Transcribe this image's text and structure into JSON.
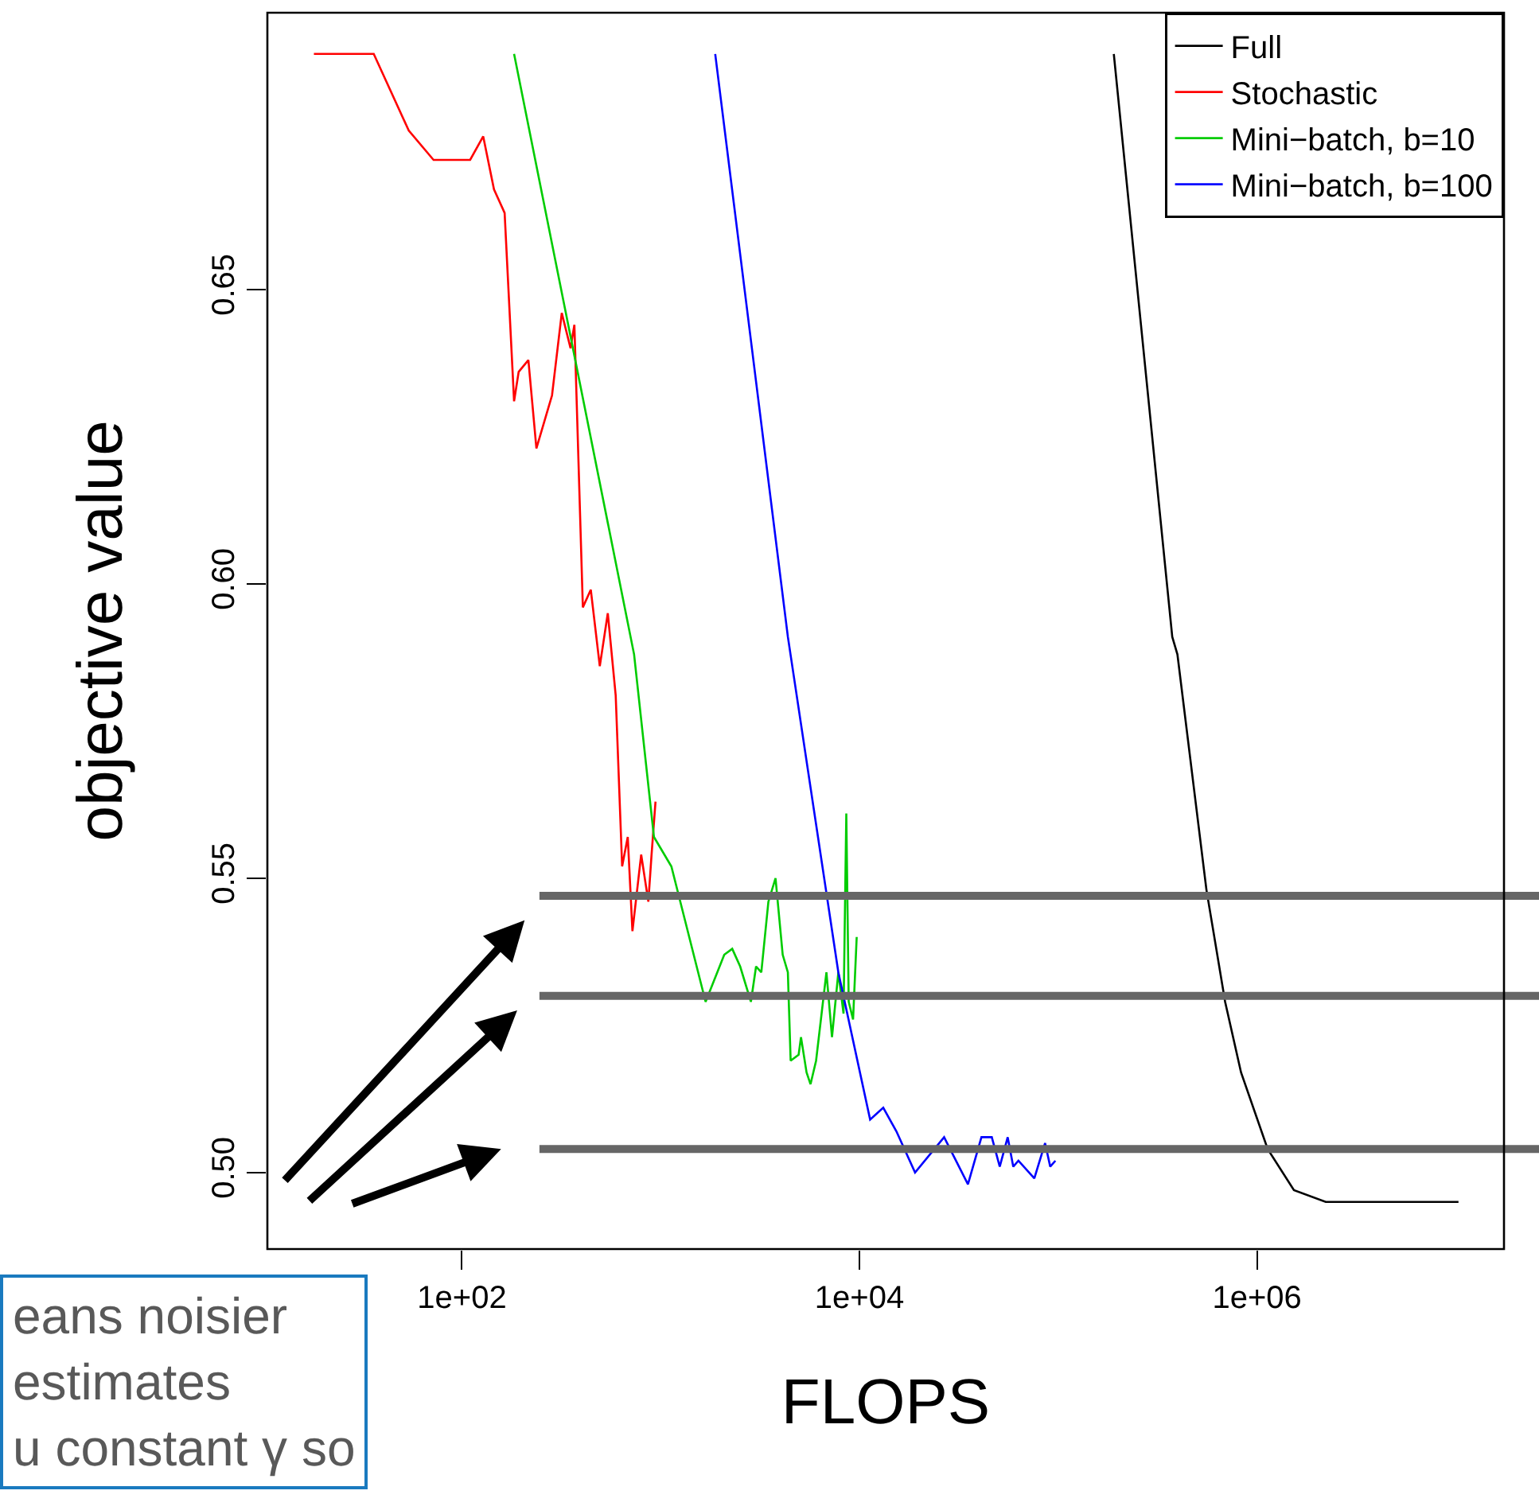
{
  "chart_data": {
    "type": "line",
    "xlabel": "FLOPS",
    "ylabel": "objective value",
    "log": "x",
    "xlim": [
      10.5,
      17500000
    ],
    "xticks": [
      {
        "value": 100,
        "label": "1e+02"
      },
      {
        "value": 10000,
        "label": "1e+04"
      },
      {
        "value": 1000000,
        "label": "1e+06"
      }
    ],
    "ylim": [
      0.487,
      0.697
    ],
    "yticks": [
      {
        "value": 0.5,
        "label": "0.50"
      },
      {
        "value": 0.55,
        "label": "0.55"
      },
      {
        "value": 0.6,
        "label": "0.60"
      },
      {
        "value": 0.65,
        "label": "0.65"
      }
    ],
    "grid": false,
    "legend": "top right",
    "marker": "none",
    "line_style": "solid",
    "series": [
      {
        "name": "Full",
        "color": "#000000",
        "x": [
          190500,
          374900,
          398100,
          557200,
          691800,
          831800,
          1132000,
          1535000,
          2218000,
          3420000,
          10330000
        ],
        "values": [
          0.69,
          0.591,
          0.588,
          0.548,
          0.529,
          0.517,
          0.504,
          0.497,
          0.495,
          0.495,
          0.495
        ]
      },
      {
        "name": "Stochastic",
        "color": "#ff0000",
        "x": [
          18,
          36,
          54,
          72,
          91,
          110,
          128,
          145,
          164,
          183,
          193,
          216,
          237,
          284,
          318,
          352,
          368,
          406,
          445,
          494,
          542,
          594,
          640,
          683,
          721,
          798,
          867,
          900,
          942
        ],
        "values": [
          0.69,
          0.69,
          0.677,
          0.672,
          0.672,
          0.672,
          0.676,
          0.667,
          0.663,
          0.631,
          0.636,
          0.638,
          0.623,
          0.632,
          0.646,
          0.64,
          0.644,
          0.596,
          0.599,
          0.586,
          0.595,
          0.581,
          0.552,
          0.557,
          0.541,
          0.554,
          0.546,
          0.554,
          0.563
        ]
      },
      {
        "name": "Mini−batch, b=10",
        "color": "#00cc00",
        "x": [
          183,
          735,
          925,
          1132,
          1683,
          2089,
          2291,
          2512,
          2844,
          3020,
          3209,
          3483,
          3784,
          4111,
          4365,
          4508,
          4943,
          5082,
          5420,
          5675,
          6053,
          6823,
          7278,
          7834,
          8318,
          8590,
          8831,
          9290,
          9690
        ],
        "values": [
          0.69,
          0.588,
          0.557,
          0.552,
          0.529,
          0.537,
          0.538,
          0.535,
          0.529,
          0.535,
          0.534,
          0.546,
          0.55,
          0.537,
          0.534,
          0.519,
          0.52,
          0.523,
          0.517,
          0.515,
          0.519,
          0.534,
          0.523,
          0.534,
          0.527,
          0.561,
          0.529,
          0.526,
          0.54
        ]
      },
      {
        "name": "Mini−batch, b=100",
        "color": "#0000ff",
        "x": [
          1881,
          4365,
          7834,
          11320,
          13180,
          15350,
          19050,
          26680,
          35160,
          41110,
          46340,
          50820,
          55720,
          59430,
          63100,
          75860,
          85900,
          91200,
          96830
        ],
        "values": [
          0.69,
          0.591,
          0.534,
          0.509,
          0.511,
          0.507,
          0.5,
          0.506,
          0.498,
          0.506,
          0.506,
          0.501,
          0.506,
          0.501,
          0.502,
          0.499,
          0.505,
          0.501,
          0.502
        ]
      }
    ],
    "ref_lines": [
      {
        "axis": "y",
        "value": 0.547,
        "color": "#666666"
      },
      {
        "axis": "y",
        "value": 0.53,
        "color": "#666666"
      },
      {
        "axis": "y",
        "value": 0.504,
        "color": "#666666"
      }
    ],
    "annotations": [
      "eans noisier",
      "estimates",
      "u constant γ so"
    ]
  }
}
